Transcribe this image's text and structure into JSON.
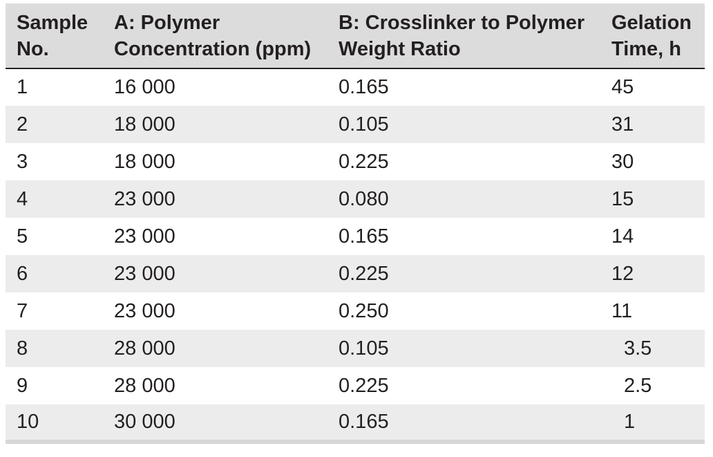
{
  "table": {
    "headers": [
      [
        "Sample",
        "No."
      ],
      [
        "A: Polymer",
        "Concentration (ppm)"
      ],
      [
        "B: Crosslinker to Polymer",
        "Weight Ratio"
      ],
      [
        "Gelation",
        "Time, h"
      ]
    ],
    "rows": [
      [
        "1",
        "16 000",
        "0.165",
        "45"
      ],
      [
        "2",
        "18 000",
        "0.105",
        "31"
      ],
      [
        "3",
        "18 000",
        "0.225",
        "30"
      ],
      [
        "4",
        "23 000",
        "0.080",
        "15"
      ],
      [
        "5",
        "23 000",
        "0.165",
        "14"
      ],
      [
        "6",
        "23 000",
        "0.225",
        "12"
      ],
      [
        "7",
        "23 000",
        "0.250",
        "11"
      ],
      [
        "8",
        "28 000",
        "0.105",
        "3.5"
      ],
      [
        "9",
        "28 000",
        "0.225",
        "2.5"
      ],
      [
        "10",
        "30 000",
        "0.165",
        "1"
      ]
    ]
  }
}
